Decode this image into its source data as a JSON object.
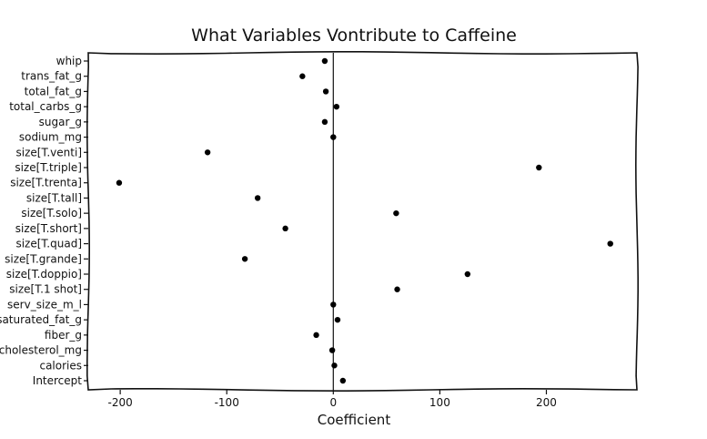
{
  "chart_data": {
    "type": "scatter",
    "title": "What Variables Vontribute to Caffeine",
    "xlabel": "Coefficient",
    "ylabel": "",
    "xlim": [
      -230,
      285
    ],
    "xticks": [
      -200,
      -100,
      0,
      100,
      200
    ],
    "xtick_labels": [
      "-200",
      "-100",
      "0",
      "100",
      "200"
    ],
    "reference_line_x": 0,
    "grid": false,
    "categories": [
      "whip",
      "trans_fat_g",
      "total_fat_g",
      "total_carbs_g",
      "sugar_g",
      "sodium_mg",
      "size[T.venti]",
      "size[T.triple]",
      "size[T.trenta]",
      "size[T.tall]",
      "size[T.solo]",
      "size[T.short]",
      "size[T.quad]",
      "size[T.grande]",
      "size[T.doppio]",
      "size[T.1 shot]",
      "serv_size_m_l",
      "saturated_fat_g",
      "fiber_g",
      "cholesterol_mg",
      "calories",
      "Intercept"
    ],
    "values": [
      -8,
      -29,
      -7,
      3,
      -8,
      0,
      -118,
      193,
      -201,
      -71,
      59,
      -45,
      260,
      -83,
      126,
      60,
      0,
      4,
      -16,
      -1,
      1,
      9
    ]
  }
}
